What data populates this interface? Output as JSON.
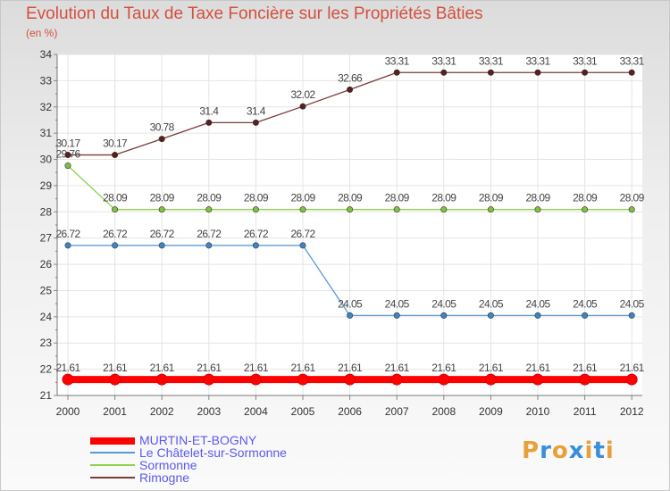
{
  "title": "Evolution du Taux de Taxe Foncière sur les Propriétés Bâties",
  "unit_label": "(en %)",
  "logo": {
    "text": "Proxiti",
    "colors": [
      "#e8a13a",
      "#3a8fd8",
      "#e8a13a",
      "#3a8fd8",
      "#e8a13a",
      "#3a8fd8",
      "#e8a13a"
    ]
  },
  "chart_data": {
    "type": "line",
    "title": "Evolution du Taux de Taxe Foncière sur les Propriétés Bâties",
    "ylabel": "(en %)",
    "xlabel": "",
    "x": [
      "2000",
      "2001",
      "2002",
      "2003",
      "2004",
      "2005",
      "2006",
      "2007",
      "2008",
      "2009",
      "2010",
      "2011",
      "2012"
    ],
    "ylim": [
      21,
      34
    ],
    "yticks": [
      21,
      22,
      23,
      24,
      25,
      26,
      27,
      28,
      29,
      30,
      31,
      32,
      33,
      34
    ],
    "grid": true,
    "legend_position": "bottom-left",
    "series": [
      {
        "name": "MURTIN-ET-BOGNY",
        "color": "#ff0000",
        "point_color": "#ff0000",
        "thick": true,
        "values": [
          21.61,
          21.61,
          21.61,
          21.61,
          21.61,
          21.61,
          21.61,
          21.61,
          21.61,
          21.61,
          21.61,
          21.61,
          21.61
        ],
        "labels": [
          "21.61",
          "21.61",
          "21.61",
          "21.61",
          "21.61",
          "21.61",
          "21.61",
          "21.61",
          "21.61",
          "21.61",
          "21.61",
          "21.61",
          "21.61"
        ]
      },
      {
        "name": "Le Châtelet-sur-Sormonne",
        "color": "#5b9bd5",
        "point_color": "#3d85c6",
        "thick": false,
        "values": [
          26.72,
          26.72,
          26.72,
          26.72,
          26.72,
          26.72,
          24.05,
          24.05,
          24.05,
          24.05,
          24.05,
          24.05,
          24.05
        ],
        "labels": [
          "26.72",
          "26.72",
          "26.72",
          "26.72",
          "26.72",
          "26.72",
          "24.05",
          "24.05",
          "24.05",
          "24.05",
          "24.05",
          "24.05",
          "24.05"
        ]
      },
      {
        "name": "Sormonne",
        "color": "#8fd14f",
        "point_color": "#7fc241",
        "thick": false,
        "values": [
          29.76,
          28.09,
          28.09,
          28.09,
          28.09,
          28.09,
          28.09,
          28.09,
          28.09,
          28.09,
          28.09,
          28.09,
          28.09
        ],
        "labels": [
          "29.76",
          "28.09",
          "28.09",
          "28.09",
          "28.09",
          "28.09",
          "28.09",
          "28.09",
          "28.09",
          "28.09",
          "28.09",
          "28.09",
          "28.09"
        ]
      },
      {
        "name": "Rimogne",
        "color": "#7a3b3b",
        "point_color": "#5a1e1e",
        "thick": false,
        "values": [
          30.17,
          30.17,
          30.78,
          31.4,
          31.4,
          32.02,
          32.66,
          33.31,
          33.31,
          33.31,
          33.31,
          33.31,
          33.31
        ],
        "labels": [
          "30.17",
          "30.17",
          "30.78",
          "31.4",
          "31.4",
          "32.02",
          "32.66",
          "33.31",
          "33.31",
          "33.31",
          "33.31",
          "33.31",
          "33.31"
        ]
      }
    ]
  }
}
